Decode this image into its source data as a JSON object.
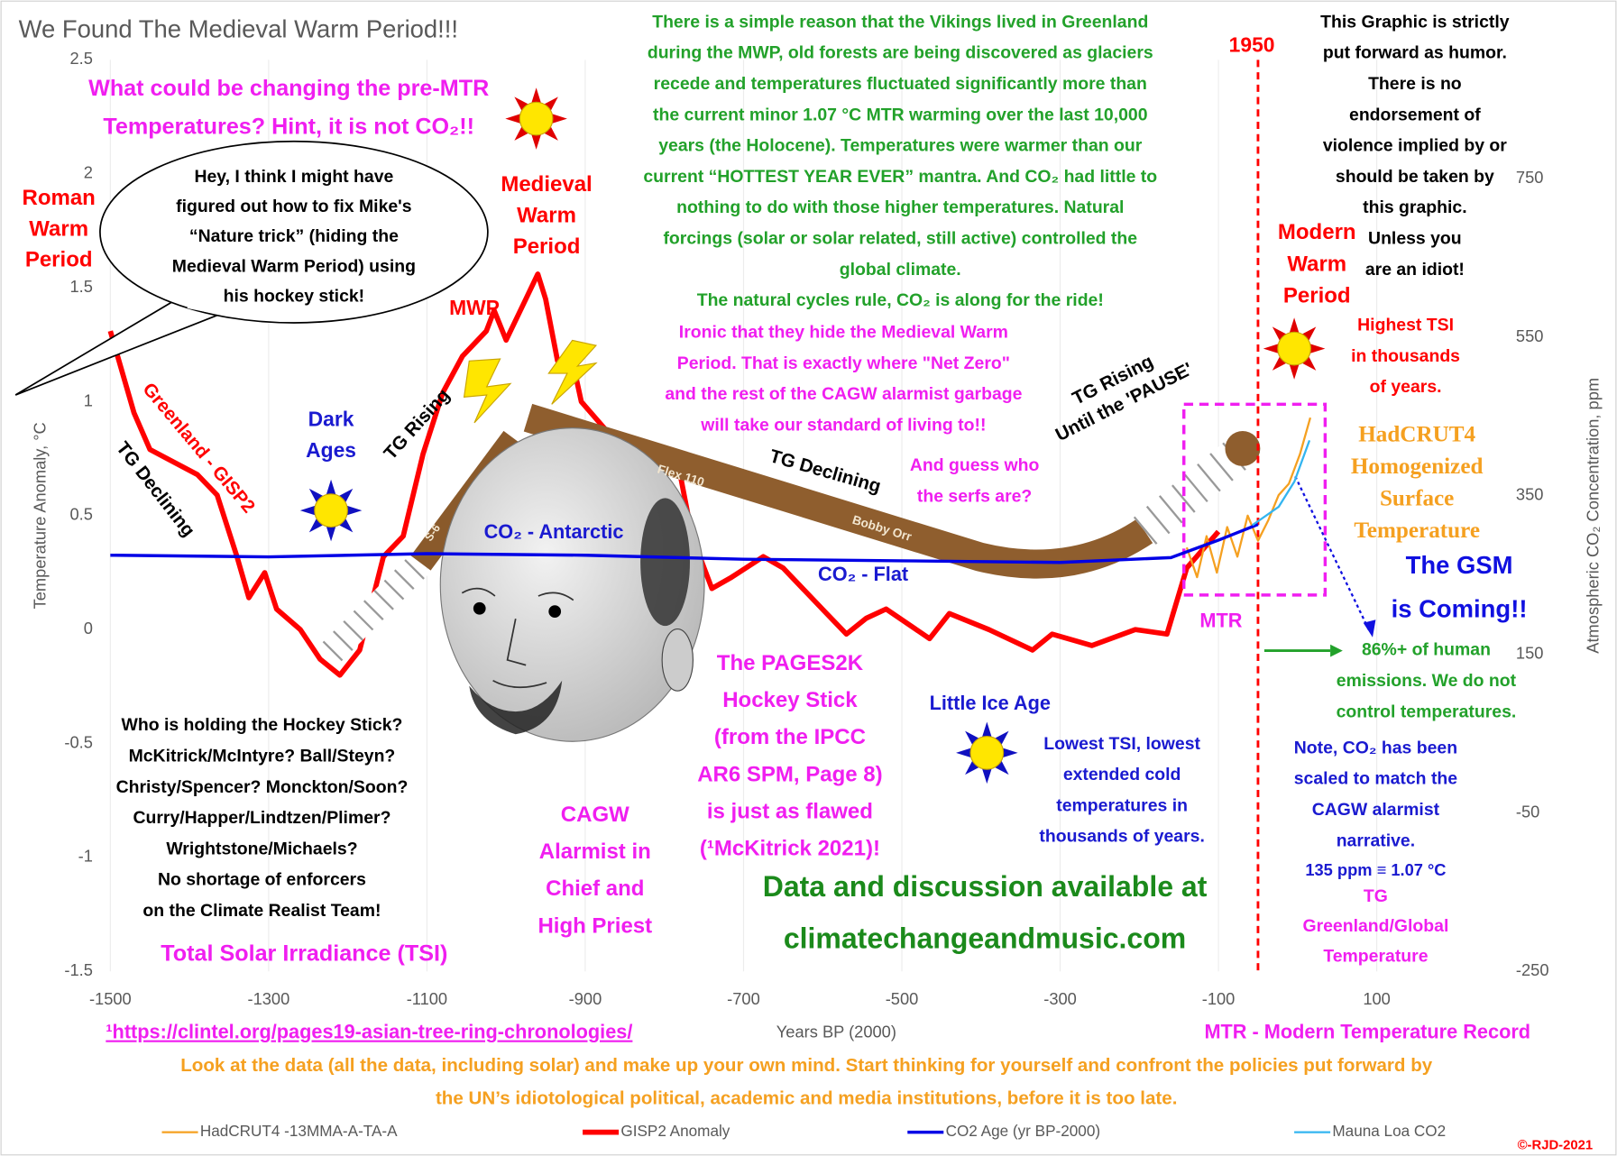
{
  "chart_data": {
    "type": "line",
    "title": "We Found The Medieval Warm Period!!!",
    "x_label": "Years BP (2000)",
    "y_label": "Temperature Anomaly, °C",
    "y2_label": "Atmospheric CO₂ Concentration, ppm",
    "xlim": [
      -1500,
      270
    ],
    "xticks": [
      -1500,
      -1300,
      -1100,
      -900,
      -700,
      -500,
      -300,
      -100,
      100
    ],
    "ylim": [
      -1.5,
      2.5
    ],
    "yticks": [
      -1.5,
      -1,
      -0.5,
      0,
      0.5,
      1,
      1.5,
      2,
      2.5
    ],
    "y2lim": [
      -250,
      900
    ],
    "y2ticks": [
      -250,
      -50,
      150,
      350,
      550,
      750
    ],
    "grid": true,
    "series": [
      {
        "name": "HadCRUT4 -13MMA-A-TA-A",
        "color": "#f5a020",
        "x": [
          -140,
          -127,
          -115,
          -102,
          -89,
          -76,
          -63,
          -50,
          -37,
          -24,
          -11,
          3,
          16
        ],
        "values": [
          0.36,
          0.23,
          0.41,
          0.25,
          0.45,
          0.32,
          0.5,
          0.39,
          0.48,
          0.59,
          0.64,
          0.77,
          0.93
        ]
      },
      {
        "name": "GISP2 Anomaly",
        "color": "#ff0000",
        "x": [
          -1500,
          -1470,
          -1450,
          -1390,
          -1365,
          -1340,
          -1325,
          -1305,
          -1290,
          -1260,
          -1235,
          -1210,
          -1185,
          -1155,
          -1130,
          -1105,
          -1080,
          -1055,
          -1025,
          -1015,
          -1000,
          -975,
          -960,
          -950,
          -935,
          -915,
          -905,
          -870,
          -840,
          -805,
          -780,
          -765,
          -740,
          -715,
          -675,
          -650,
          -595,
          -570,
          -545,
          -520,
          -465,
          -440,
          -390,
          -335,
          -310,
          -260,
          -205,
          -165,
          -140,
          -100
        ],
        "values": [
          1.31,
          0.95,
          0.79,
          0.68,
          0.59,
          0.32,
          0.14,
          0.25,
          0.09,
          0.0,
          -0.13,
          -0.2,
          -0.09,
          0.32,
          0.41,
          0.77,
          1.04,
          1.2,
          1.31,
          1.4,
          1.27,
          1.45,
          1.56,
          1.45,
          1.18,
          1.16,
          1.0,
          0.86,
          0.73,
          0.73,
          0.68,
          0.41,
          0.18,
          0.23,
          0.32,
          0.27,
          0.07,
          -0.02,
          0.05,
          0.09,
          -0.04,
          0.07,
          0.0,
          -0.09,
          -0.02,
          -0.07,
          0.0,
          -0.02,
          0.27,
          0.43
        ]
      },
      {
        "name": "CO2 Age (yr BP-2000)",
        "color": "#0000e6",
        "axis": "y2",
        "x": [
          -1500,
          -1300,
          -1100,
          -900,
          -700,
          -500,
          -300,
          -160,
          -100,
          -50
        ],
        "values": [
          275,
          273,
          277,
          275,
          270,
          268,
          266,
          272,
          294,
          314
        ]
      },
      {
        "name": "Mauna Loa CO2",
        "color": "#33b5f0",
        "axis": "y2",
        "x": [
          -57,
          -24,
          -4,
          15
        ],
        "values": [
          313,
          336,
          368,
          420
        ]
      }
    ],
    "vline": {
      "x": -50,
      "label": "1950",
      "color": "#ff0000"
    },
    "annotations": [
      {
        "color": "#f01ef0",
        "lines": [
          "What could be changing the pre-MTR",
          "Temperatures? Hint, it is not CO₂!!"
        ]
      },
      {
        "color": "#ff0000",
        "lines": [
          "Roman",
          "Warm",
          "Period"
        ]
      },
      {
        "color": "#000000",
        "lines": [
          "Hey, I think I might have",
          "figured out how to fix Mike's",
          "“Nature trick” (hiding the",
          "Medieval Warm Period) using",
          "his hockey stick!"
        ]
      },
      {
        "color": "#ff0000",
        "lines": [
          "Medieval",
          "Warm",
          "Period"
        ]
      },
      {
        "color": "#ff0000",
        "lines": [
          "MWP"
        ]
      },
      {
        "color": "#22a12a",
        "lines": [
          "There is a simple reason that the Vikings lived in Greenland",
          "during the MWP, old forests are being discovered as glaciers",
          "recede and temperatures fluctuated significantly more than",
          "the current minor 1.07 °C MTR warming over the last 10,000",
          "years (the Holocene). Temperatures were warmer than our",
          "current “HOTTEST YEAR EVER” mantra. And CO₂ had little to",
          "nothing to do with those higher temperatures. Natural",
          "forcings (solar or solar related, still active) controlled the",
          "global climate.",
          "The natural cycles rule, CO₂ is along for the ride!"
        ]
      },
      {
        "color": "#f01ef0",
        "lines": [
          "Ironic that they hide the Medieval Warm",
          "Period. That is exactly where \"Net Zero\"",
          "and the rest of the CAGW alarmist garbage",
          "will take our standard of living to!!"
        ]
      },
      {
        "color": "#000000",
        "lines": [
          "This Graphic is strictly",
          "put forward as humor.",
          "There is no",
          "endorsement of",
          "violence implied by or",
          "should be taken by",
          "this graphic.",
          "Unless you",
          "are an idiot!"
        ]
      },
      {
        "color": "#ff0000",
        "lines": [
          "Modern",
          "Warm",
          "Period"
        ]
      },
      {
        "color": "#ff0000",
        "lines": [
          "Highest TSI",
          "in thousands",
          "of years."
        ]
      },
      {
        "color": "#f5a020",
        "lines": [
          "HadCRUT4",
          "Homogenized",
          "Surface",
          "Temperature"
        ]
      },
      {
        "color": "#1010e0",
        "lines": [
          "The GSM",
          "is Coming!!"
        ]
      },
      {
        "color": "#1a1ad0",
        "lines": [
          "Dark",
          "Ages"
        ]
      },
      {
        "color": "#f01ef0",
        "lines": [
          "And guess who",
          "the serfs are?"
        ]
      },
      {
        "color": "#1a1ad0",
        "lines": [
          "CO₂ - Antarctic"
        ]
      },
      {
        "color": "#1a1ad0",
        "lines": [
          "CO₂ - Flat"
        ]
      },
      {
        "color": "#f01ef0",
        "lines": [
          "MTR"
        ]
      },
      {
        "color": "#22a12a",
        "lines": [
          "86%+ of human",
          "emissions. We do not",
          "control temperatures."
        ]
      },
      {
        "color": "#f01ef0",
        "lines": [
          "The PAGES2K",
          "Hockey Stick",
          "(from the IPCC",
          "AR6 SPM, Page 8)",
          "is just as flawed",
          "(¹McKitrick 2021)!"
        ]
      },
      {
        "color": "#1a1ad0",
        "lines": [
          "Little Ice Age"
        ]
      },
      {
        "color": "#1a1ad0",
        "lines": [
          "Lowest TSI, lowest",
          "extended cold",
          "temperatures in",
          "thousands of years."
        ]
      },
      {
        "color": "#000000",
        "lines": [
          "Who is holding the Hockey Stick?",
          "McKitrick/McIntyre? Ball/Steyn?",
          "Christy/Spencer? Monckton/Soon?",
          "Curry/Happer/Lindtzen/Plimer?",
          "Wrightstone/Michaels?",
          "No shortage of enforcers",
          "on the Climate Realist Team!"
        ]
      },
      {
        "color": "#f01ef0",
        "lines": [
          "Total Solar Irradiance (TSI)"
        ]
      },
      {
        "color": "#f01ef0",
        "lines": [
          "CAGW",
          "Alarmist in",
          "Chief and",
          "High Priest"
        ]
      },
      {
        "color": "#1b8a1b",
        "lines": [
          "Data and discussion available at",
          "climatechangeandmusic.com"
        ]
      },
      {
        "color": "#1a1ad0",
        "lines": [
          "Note, CO₂ has been",
          "scaled to match the",
          "CAGW alarmist",
          "narrative."
        ]
      },
      {
        "color": "#1a1ad0",
        "lines": [
          "135 ppm ≡ 1.07 °C"
        ]
      },
      {
        "color": "#f01ef0",
        "lines": [
          "TG",
          "Greenland/Global",
          "Temperature"
        ]
      },
      {
        "color": "#f01ef0",
        "lines": [
          "¹https://clintel.org/pages19-asian-tree-ring-chronologies/"
        ]
      },
      {
        "color": "#f01ef0",
        "lines": [
          "MTR - Modern Temperature Record"
        ]
      },
      {
        "color": "#f5a020",
        "lines": [
          "Look at the data (all the data, including solar) and make up your own mind. Start thinking for yourself and confront the policies put forward by",
          "the UN’s idiotological political, academic and media institutions, before it is too late."
        ]
      },
      {
        "color": "#ff0000",
        "lines": [
          "©-RJD-2021"
        ]
      },
      {
        "color": "#ff0000",
        "lines": [
          "Greenland - GISP2"
        ]
      },
      {
        "color": "#000000",
        "lines": [
          "TG Declining"
        ]
      },
      {
        "color": "#000000",
        "lines": [
          "TG Rising"
        ]
      },
      {
        "color": "#000000",
        "lines": [
          "TG Declining"
        ]
      },
      {
        "color": "#000000",
        "lines": [
          "TG Rising",
          "Until the 'PAUSE'"
        ]
      },
      {
        "color": "#f2e6d0",
        "lines": [
          "S-6"
        ]
      },
      {
        "color": "#f2e6d0",
        "lines": [
          "Flex 110"
        ]
      },
      {
        "color": "#f2e6d0",
        "lines": [
          "Bobby Orr"
        ]
      }
    ]
  }
}
